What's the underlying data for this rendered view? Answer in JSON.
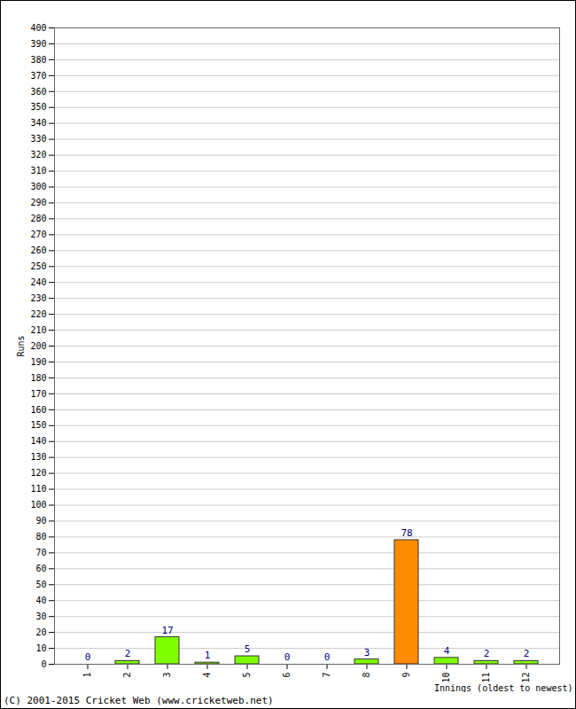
{
  "chart_data": {
    "type": "bar",
    "x_label": "Innings (oldest to newest)",
    "y_label": "Runs",
    "caption": "(C) 2001-2015 Cricket Web (www.cricketweb.net)",
    "categories": [
      "1",
      "2",
      "3",
      "4",
      "5",
      "6",
      "7",
      "8",
      "9",
      "10",
      "11",
      "12"
    ],
    "values": [
      0,
      2,
      17,
      1,
      5,
      0,
      0,
      3,
      78,
      4,
      2,
      2
    ],
    "colors": [
      "#80ff00",
      "#80ff00",
      "#80ff00",
      "#80ff00",
      "#80ff00",
      "#80ff00",
      "#80ff00",
      "#80ff00",
      "#ff8c00",
      "#80ff00",
      "#80ff00",
      "#80ff00"
    ],
    "ylim": [
      0,
      400
    ],
    "yticks": [
      0,
      10,
      20,
      30,
      40,
      50,
      60,
      70,
      80,
      90,
      100,
      110,
      120,
      130,
      140,
      150,
      160,
      170,
      180,
      190,
      200,
      210,
      220,
      230,
      240,
      250,
      260,
      270,
      280,
      290,
      300,
      310,
      320,
      330,
      340,
      350,
      360,
      370,
      380,
      390,
      400
    ],
    "grid": true,
    "data_labels": true
  }
}
